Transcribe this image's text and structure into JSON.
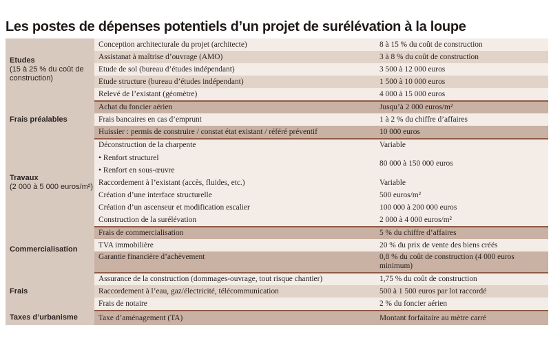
{
  "title": "Les postes de dépenses potentiels d’un projet de surélévation à la loupe",
  "groups": [
    {
      "category": "Etudes",
      "category_sub": "(15 à 25 % du coût de construction)",
      "rows": [
        {
          "item": "Conception architecturale du projet (architecte)",
          "cost": "8 à 15 % du coût de construction"
        },
        {
          "item": "Assistanat à maîtrise d’ouvrage (AMO)",
          "cost": "3 à 8 % du coût de construction"
        },
        {
          "item": "Etude de sol (bureau d’études indépendant)",
          "cost": "3 500 à 12 000 euros"
        },
        {
          "item": "Etude structure (bureau d’études indépendant)",
          "cost": "1 500 à 10 000 euros"
        },
        {
          "item": "Relevé de l’existant (géomètre)",
          "cost": "4 000 à 15 000 euros"
        }
      ]
    },
    {
      "category": "Frais préalables",
      "category_sub": "",
      "rows": [
        {
          "item": "Achat du foncier aérien",
          "cost": "Jusqu’à 2 000 euros/m²"
        },
        {
          "item": "Frais bancaires en cas d’emprunt",
          "cost": "1 à 2 % du chiffre d’affaires"
        },
        {
          "item": "Huissier : permis de construire / constat état existant / référé préventif",
          "cost": "10 000 euros"
        }
      ]
    },
    {
      "category": "Travaux",
      "category_sub": "(2 000 à 5 000 euros/m²)",
      "rows": [
        {
          "item": "Déconstruction de la charpente",
          "cost": "Variable"
        },
        {
          "item": "• Renfort structurel",
          "item2": "• Renfort en sous-œuvre",
          "cost": "80 000 à 150 000 euros"
        },
        {
          "item": "Raccordement à l’existant (accès, fluides, etc.)",
          "cost": "Variable"
        },
        {
          "item": "Création d’une interface structurelle",
          "cost": "500 euros/m²"
        },
        {
          "item": "Création d’un ascenseur et modification escalier",
          "cost": "100 000 à 200 000 euros"
        },
        {
          "item": "Construction de la surélévation",
          "cost": "2 000 à 4 000 euros/m²"
        }
      ]
    },
    {
      "category": "Commercialisation",
      "category_sub": "",
      "rows": [
        {
          "item": "Frais de commercialisation",
          "cost": "5 % du chiffre d’affaires"
        },
        {
          "item": "TVA immobilière",
          "cost": "20 % du prix de vente des biens créés"
        },
        {
          "item": "Garantie financière d’achèvement",
          "cost": "0,8 % du coût de construction (4 000 euros minimum)"
        }
      ]
    },
    {
      "category": "Frais",
      "category_sub": "",
      "rows": [
        {
          "item": "Assurance de la construction (dommages-ouvrage, tout risque chantier)",
          "cost": "1,75 % du coût de construction"
        },
        {
          "item": "Raccordement à l’eau, gaz/électricité, télécommunication",
          "cost": "500 à 1 500 euros par lot raccordé"
        },
        {
          "item": "Frais de notaire",
          "cost": "2 % du foncier aérien"
        }
      ]
    },
    {
      "category": "Taxes d’urbanisme",
      "category_sub": "",
      "rows": [
        {
          "item": "Taxe d’aménagement (TA)",
          "cost": "Montant forfaitaire au mètre carré"
        }
      ]
    }
  ]
}
